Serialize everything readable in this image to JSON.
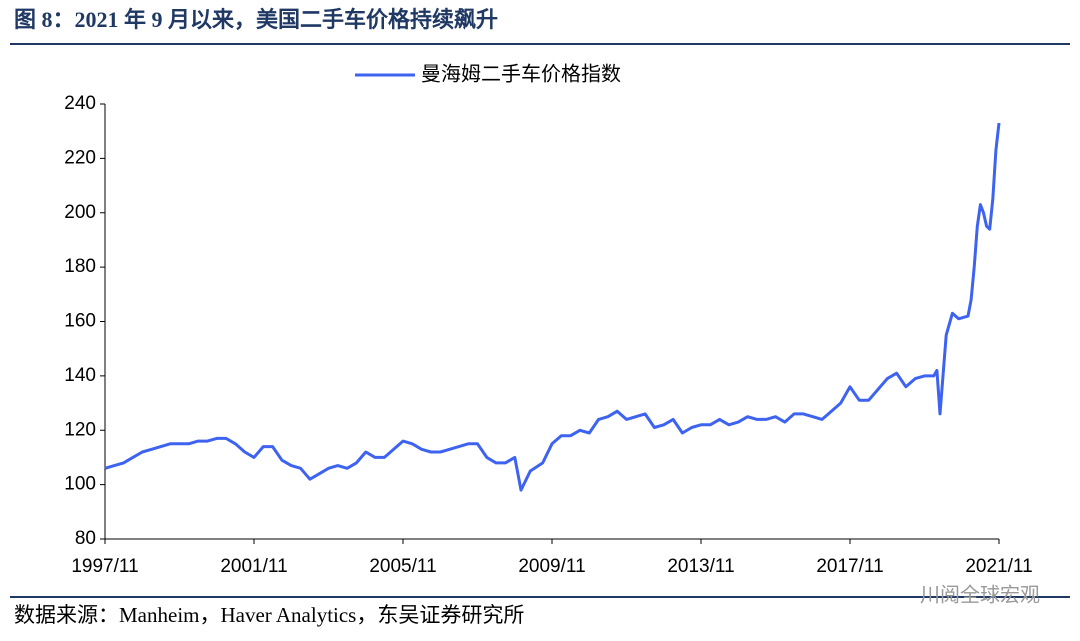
{
  "chart_data": {
    "type": "line",
    "title": "图 8：2021 年 9 月以来，美国二手车价格持续飙升",
    "source": "数据来源：Manheim，Haver Analytics，东吴证券研究所",
    "watermark": "川阅全球宏观",
    "x": [
      "1997/11",
      "1998/02",
      "1998/05",
      "1998/08",
      "1998/11",
      "1999/02",
      "1999/05",
      "1999/08",
      "1999/11",
      "2000/02",
      "2000/05",
      "2000/08",
      "2000/11",
      "2001/02",
      "2001/05",
      "2001/08",
      "2001/11",
      "2002/02",
      "2002/05",
      "2002/08",
      "2002/11",
      "2003/02",
      "2003/05",
      "2003/08",
      "2003/11",
      "2004/02",
      "2004/05",
      "2004/08",
      "2004/11",
      "2005/02",
      "2005/05",
      "2005/08",
      "2005/11",
      "2006/02",
      "2006/05",
      "2006/08",
      "2006/11",
      "2007/02",
      "2007/05",
      "2007/08",
      "2007/11",
      "2008/02",
      "2008/05",
      "2008/08",
      "2008/11",
      "2009/01",
      "2009/04",
      "2009/08",
      "2009/11",
      "2010/02",
      "2010/05",
      "2010/08",
      "2010/11",
      "2011/02",
      "2011/05",
      "2011/08",
      "2011/11",
      "2012/02",
      "2012/05",
      "2012/08",
      "2012/11",
      "2013/02",
      "2013/05",
      "2013/08",
      "2013/11",
      "2014/02",
      "2014/05",
      "2014/08",
      "2014/11",
      "2015/02",
      "2015/05",
      "2015/08",
      "2015/11",
      "2016/02",
      "2016/05",
      "2016/08",
      "2016/11",
      "2017/02",
      "2017/05",
      "2017/08",
      "2017/11",
      "2018/02",
      "2018/05",
      "2018/08",
      "2018/11",
      "2019/02",
      "2019/05",
      "2019/08",
      "2019/11",
      "2020/02",
      "2020/03",
      "2020/04",
      "2020/06",
      "2020/08",
      "2020/10",
      "2021/01",
      "2021/02",
      "2021/03",
      "2021/04",
      "2021/05",
      "2021/06",
      "2021/07",
      "2021/08",
      "2021/09",
      "2021/10",
      "2021/11"
    ],
    "series": [
      {
        "name": "曼海姆二手车价格指数",
        "color": "#3d63f0",
        "values": [
          106,
          107,
          108,
          110,
          112,
          113,
          114,
          115,
          115,
          115,
          116,
          116,
          117,
          117,
          115,
          112,
          110,
          114,
          114,
          109,
          107,
          106,
          102,
          104,
          106,
          107,
          106,
          108,
          112,
          110,
          110,
          113,
          116,
          115,
          113,
          112,
          112,
          113,
          114,
          115,
          115,
          110,
          108,
          108,
          110,
          98,
          105,
          108,
          115,
          118,
          118,
          120,
          119,
          124,
          125,
          127,
          124,
          125,
          126,
          121,
          122,
          124,
          119,
          121,
          122,
          122,
          124,
          122,
          123,
          125,
          124,
          124,
          125,
          123,
          126,
          126,
          125,
          124,
          127,
          130,
          136,
          131,
          131,
          135,
          139,
          141,
          136,
          139,
          140,
          140,
          142,
          126,
          155,
          163,
          161,
          162,
          168,
          180,
          195,
          203,
          200,
          195,
          194,
          205,
          223,
          233
        ]
      }
    ],
    "xlim": [
      "1997/11",
      "2021/11"
    ],
    "xticks": [
      "1997/11",
      "2001/11",
      "2005/11",
      "2009/11",
      "2013/11",
      "2017/11",
      "2021/11"
    ],
    "ylim": [
      80,
      240
    ],
    "yticks": [
      80,
      100,
      120,
      140,
      160,
      180,
      200,
      220,
      240
    ],
    "grid": false,
    "legend": "top"
  }
}
